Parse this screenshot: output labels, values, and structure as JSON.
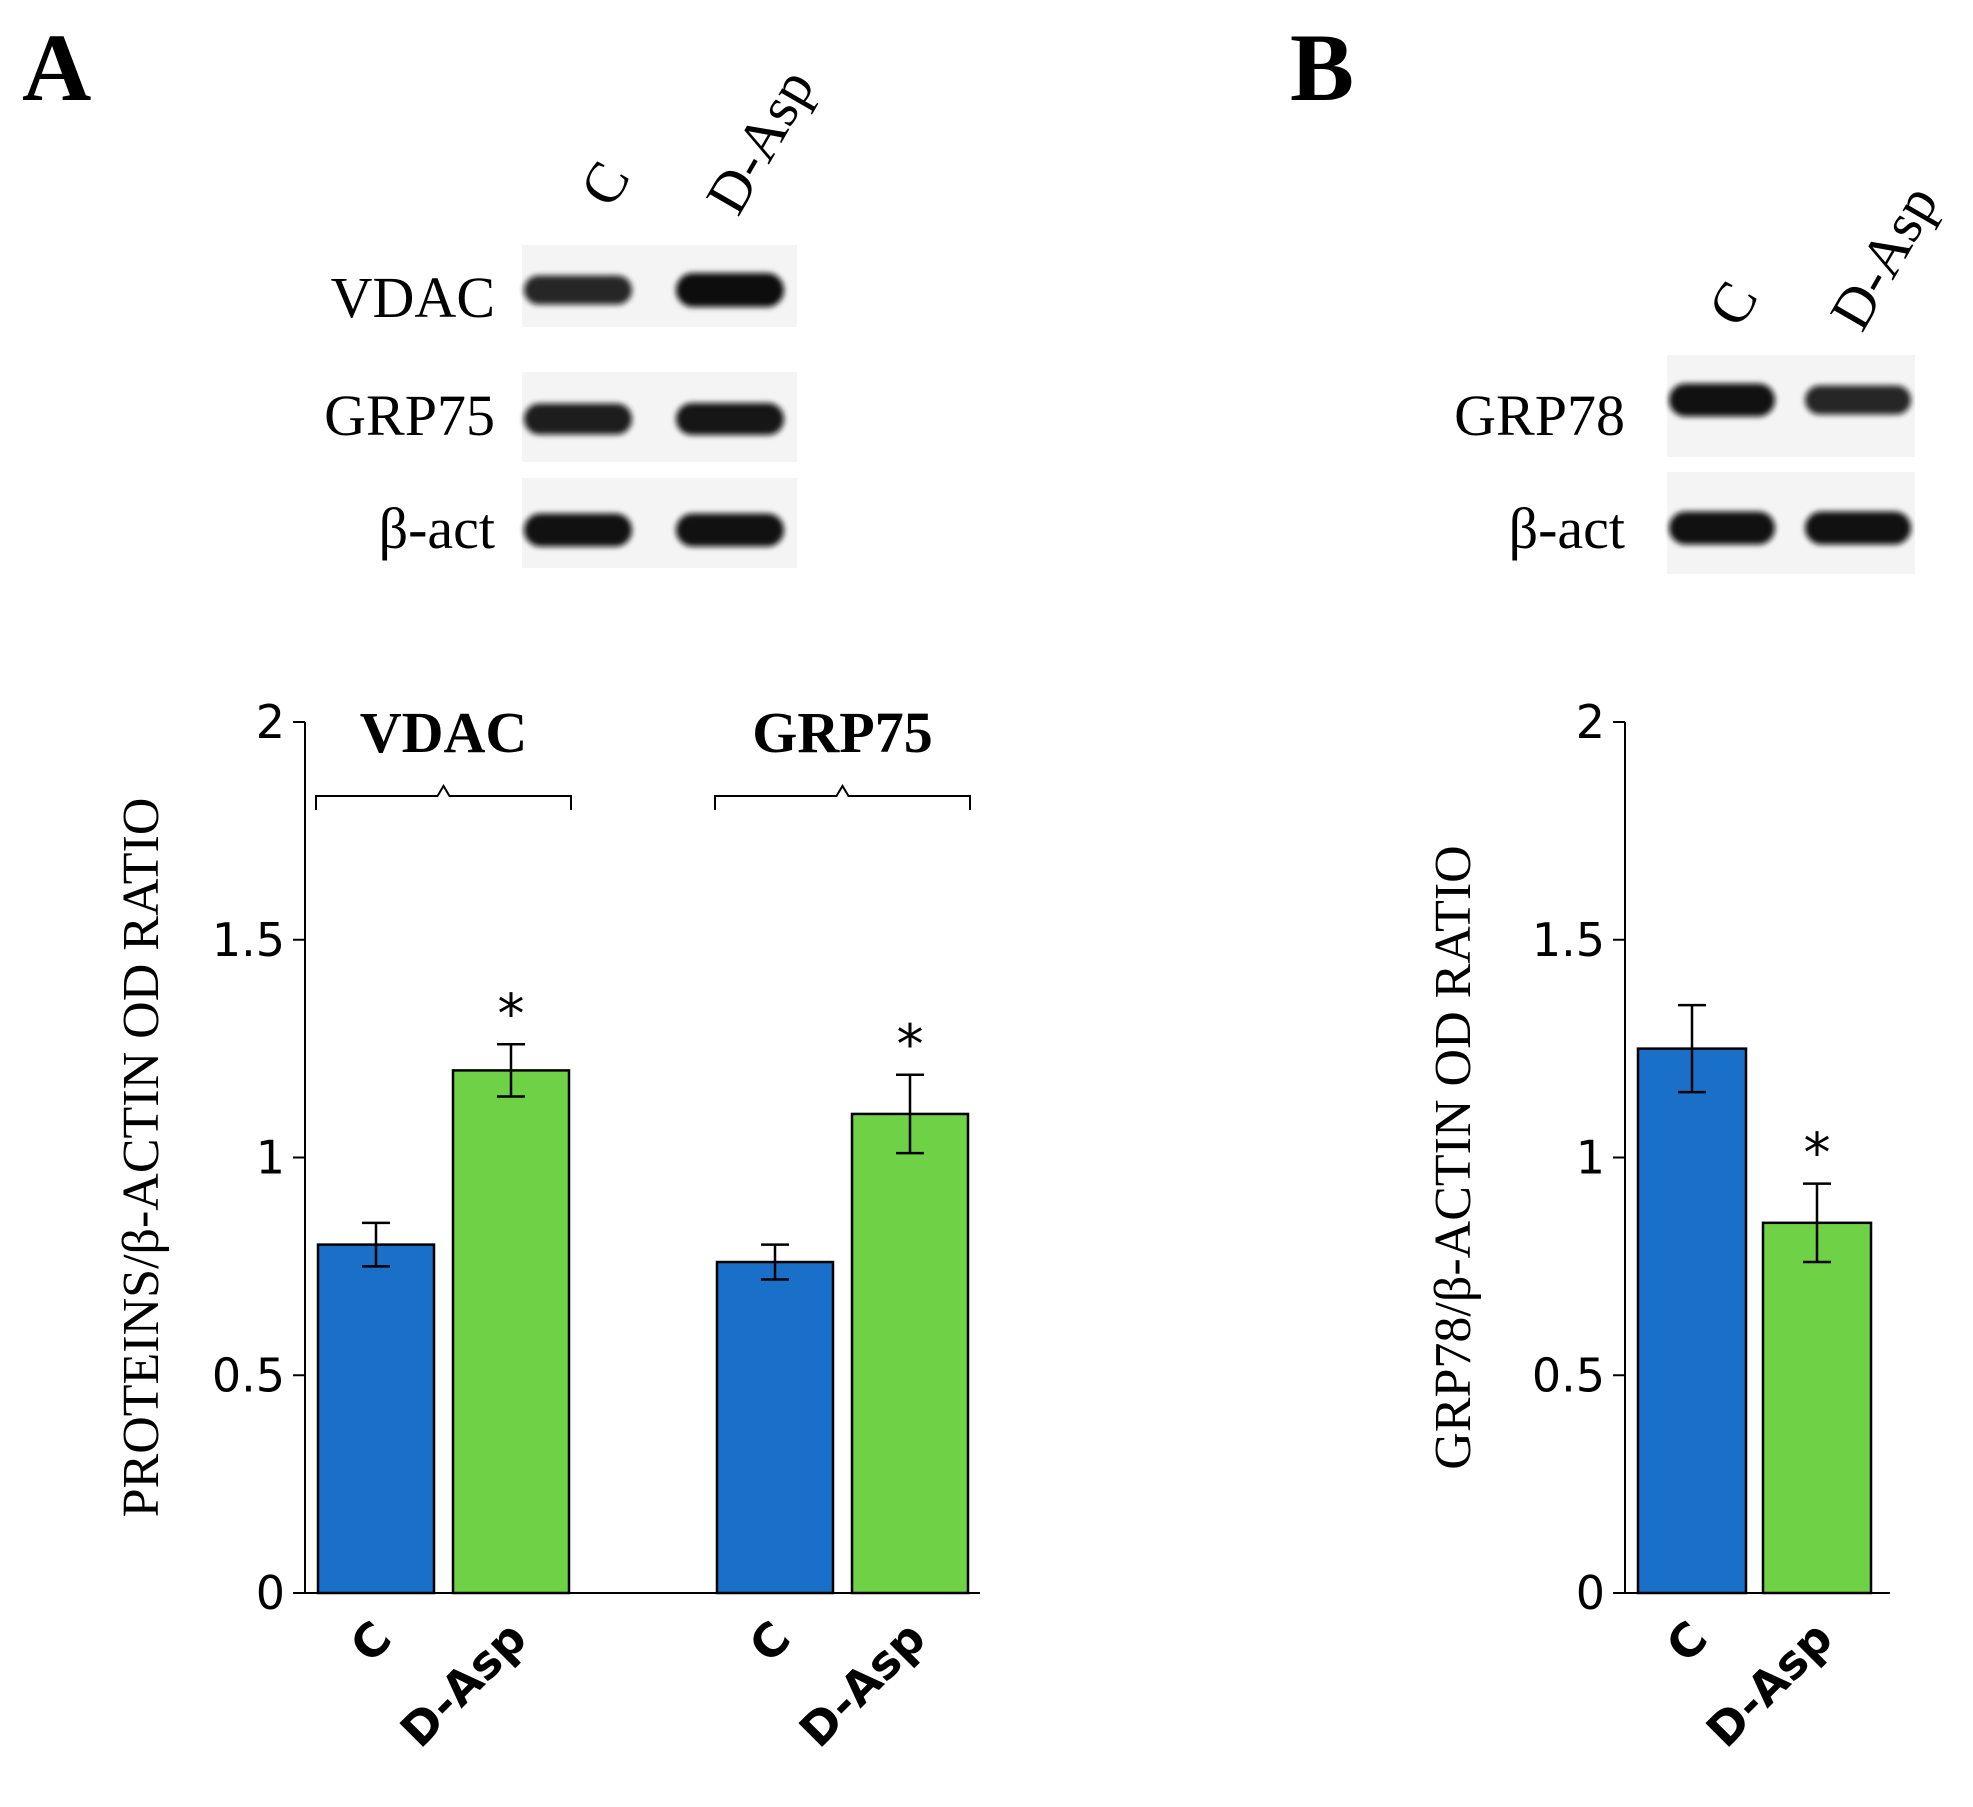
{
  "panels": {
    "A": {
      "letter": "A",
      "blot": {
        "lanes": [
          "C",
          "D-Asp"
        ],
        "bands": [
          {
            "name": "VDAC",
            "intensity": [
              0.75,
              1.0
            ]
          },
          {
            "name": "GRP75",
            "intensity": [
              0.85,
              0.9
            ]
          },
          {
            "name": "β-act",
            "intensity": [
              0.95,
              0.95
            ]
          }
        ]
      }
    },
    "B": {
      "letter": "B",
      "blot": {
        "lanes": [
          "C",
          "D-Asp"
        ],
        "bands": [
          {
            "name": "GRP78",
            "intensity": [
              0.95,
              0.75
            ]
          },
          {
            "name": "β-act",
            "intensity": [
              0.95,
              0.95
            ]
          }
        ]
      }
    }
  },
  "colors": {
    "C": "#1a70c8",
    "D-Asp": "#6fd146",
    "axis": "#000000"
  },
  "chart_data": [
    {
      "type": "bar",
      "panel": "A",
      "ylabel": "PROTEINS/β-ACTIN OD RATIO",
      "ylim": [
        0,
        2
      ],
      "yticks": [
        0,
        0.5,
        1,
        1.5,
        2
      ],
      "ytick_labels": [
        "0",
        "0.5",
        "1",
        "1.5",
        "2"
      ],
      "groups": [
        {
          "name": "VDAC",
          "bars": [
            {
              "category": "C",
              "value": 0.8,
              "error": 0.05,
              "significant": false
            },
            {
              "category": "D-Asp",
              "value": 1.2,
              "error": 0.06,
              "significant": true
            }
          ]
        },
        {
          "name": "GRP75",
          "bars": [
            {
              "category": "C",
              "value": 0.76,
              "error": 0.04,
              "significant": false
            },
            {
              "category": "D-Asp",
              "value": 1.1,
              "error": 0.09,
              "significant": true
            }
          ]
        }
      ],
      "significance_marker": "*"
    },
    {
      "type": "bar",
      "panel": "B",
      "ylabel": "GRP78/β-ACTIN OD RATIO",
      "ylim": [
        0,
        2
      ],
      "yticks": [
        0,
        0.5,
        1,
        1.5,
        2
      ],
      "ytick_labels": [
        "0",
        "0.5",
        "1",
        "1.5",
        "2"
      ],
      "groups": [
        {
          "name": "",
          "bars": [
            {
              "category": "C",
              "value": 1.25,
              "error": 0.1,
              "significant": false
            },
            {
              "category": "D-Asp",
              "value": 0.85,
              "error": 0.09,
              "significant": true
            }
          ]
        }
      ],
      "significance_marker": "*"
    }
  ]
}
